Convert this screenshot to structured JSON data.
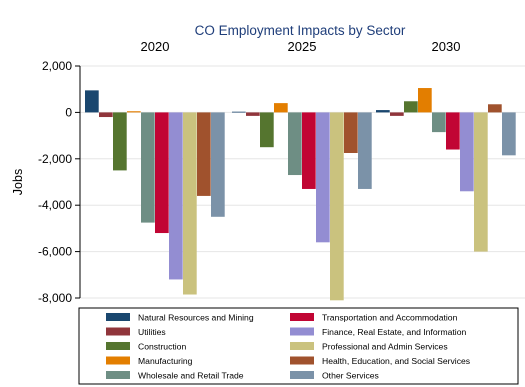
{
  "chart_data": {
    "type": "bar",
    "title": "CO Employment Impacts by Sector",
    "ylabel": "Jobs",
    "xlabel": "",
    "ylim": [
      -8000,
      2000
    ],
    "yticks": [
      2000,
      0,
      -2000,
      -4000,
      -6000,
      -8000
    ],
    "ytick_labels": [
      "2,000",
      "0",
      "-2,000",
      "-4,000",
      "-6,000",
      "-8,000"
    ],
    "grid": true,
    "legend_position": "bottom",
    "categories": [
      "2020",
      "2025",
      "2030"
    ],
    "series": [
      {
        "name": "Natural Resources and Mining",
        "color": "#1a476f",
        "values": [
          950,
          30,
          100
        ]
      },
      {
        "name": "Utilities",
        "color": "#90353b",
        "values": [
          -200,
          -150,
          -150
        ]
      },
      {
        "name": "Construction",
        "color": "#55752f",
        "values": [
          -2500,
          -1500,
          480
        ]
      },
      {
        "name": "Manufacturing",
        "color": "#e37e00",
        "values": [
          50,
          400,
          1050
        ]
      },
      {
        "name": "Wholesale and Retail Trade",
        "color": "#6e8e84",
        "values": [
          -4750,
          -2700,
          -850
        ]
      },
      {
        "name": "Transportation and Accommodation",
        "color": "#c10534",
        "values": [
          -5200,
          -3300,
          -1600
        ]
      },
      {
        "name": "Finance, Real Estate, and Information",
        "color": "#938dd2",
        "values": [
          -7200,
          -5600,
          -3400
        ]
      },
      {
        "name": "Professional and Admin Services",
        "color": "#cac27e",
        "values": [
          -7850,
          -8100,
          -6000
        ]
      },
      {
        "name": "Health, Education, and Social Services",
        "color": "#a0522d",
        "values": [
          -3600,
          -1750,
          350
        ]
      },
      {
        "name": "Other Services",
        "color": "#7b92a8",
        "values": [
          -4500,
          -3300,
          -1850
        ]
      }
    ]
  }
}
